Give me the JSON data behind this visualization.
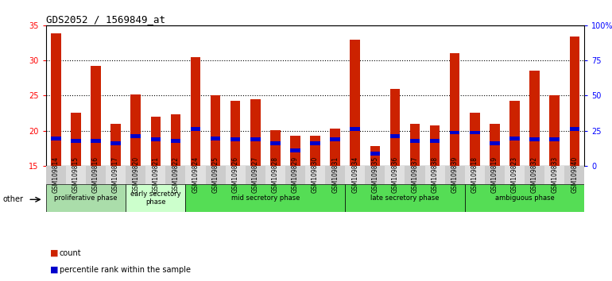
{
  "title": "GDS2052 / 1569849_at",
  "samples": [
    "GSM109814",
    "GSM109815",
    "GSM109816",
    "GSM109817",
    "GSM109820",
    "GSM109821",
    "GSM109822",
    "GSM109824",
    "GSM109825",
    "GSM109826",
    "GSM109827",
    "GSM109828",
    "GSM109829",
    "GSM109830",
    "GSM109831",
    "GSM109834",
    "GSM109835",
    "GSM109836",
    "GSM109837",
    "GSM109838",
    "GSM109839",
    "GSM109818",
    "GSM109819",
    "GSM109823",
    "GSM109832",
    "GSM109833",
    "GSM109840"
  ],
  "count_values": [
    33.8,
    22.5,
    29.2,
    21.0,
    25.1,
    22.0,
    22.3,
    30.5,
    25.0,
    24.2,
    24.5,
    20.1,
    19.3,
    19.3,
    20.3,
    33.0,
    17.8,
    26.0,
    21.0,
    20.8,
    31.0,
    22.5,
    21.0,
    24.2,
    28.5,
    25.0,
    33.4
  ],
  "percentile_values": [
    19.2,
    18.8,
    18.8,
    18.5,
    19.5,
    19.0,
    18.8,
    20.5,
    19.2,
    19.0,
    19.0,
    18.5,
    17.5,
    18.5,
    19.0,
    20.5,
    17.0,
    19.5,
    18.8,
    18.8,
    20.0,
    20.0,
    18.5,
    19.2,
    19.0,
    19.0,
    20.5
  ],
  "ylim_left": [
    15,
    35
  ],
  "yticks_left": [
    15,
    20,
    25,
    30,
    35
  ],
  "yticks_right_labels": [
    "0",
    "25",
    "50",
    "75",
    "100%"
  ],
  "bar_color_count": "#cc2200",
  "bar_color_percentile": "#0000cc",
  "bg_color": "#ffffff",
  "group_defs": [
    {
      "label": "proliferative phase",
      "start": 0,
      "end": 4,
      "color": "#aaddaa"
    },
    {
      "label": "early secretory\nphase",
      "start": 4,
      "end": 7,
      "color": "#ccffcc"
    },
    {
      "label": "mid secretory phase",
      "start": 7,
      "end": 15,
      "color": "#55dd55"
    },
    {
      "label": "late secretory phase",
      "start": 15,
      "end": 21,
      "color": "#55dd55"
    },
    {
      "label": "ambiguous phase",
      "start": 21,
      "end": 27,
      "color": "#55dd55"
    }
  ]
}
